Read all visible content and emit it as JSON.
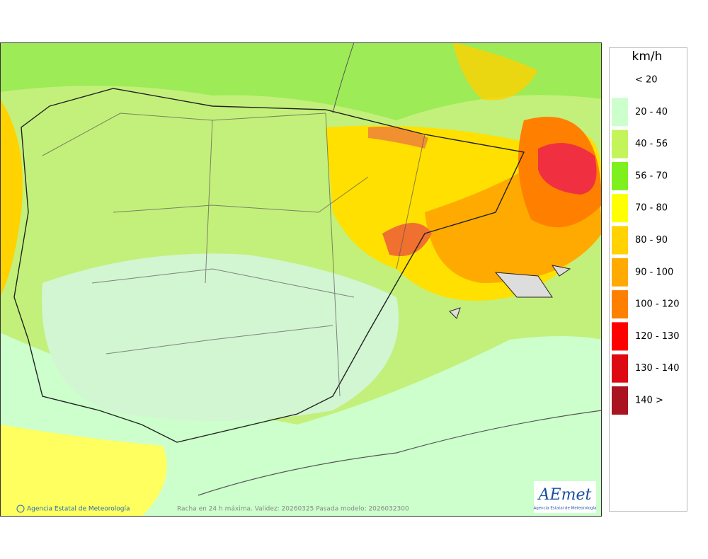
{
  "legend": {
    "title": "km/h",
    "items": [
      {
        "label": "< 20"
      },
      {
        "label": "20 - 40",
        "color": "#ccffcc"
      },
      {
        "label": "40 - 56",
        "color": "#c3f55a"
      },
      {
        "label": "56 - 70",
        "color": "#7ef01e"
      },
      {
        "label": "70 - 80",
        "color": "#ffff00"
      },
      {
        "label": "80 - 90",
        "color": "#ffd200"
      },
      {
        "label": "90 - 100",
        "color": "#ffaa00"
      },
      {
        "label": "100 - 120",
        "color": "#ff8000"
      },
      {
        "label": "120 - 130",
        "color": "#ff0000"
      },
      {
        "label": "130 - 140",
        "color": "#dd0a14"
      },
      {
        "label": "140 >",
        "color": "#aa1420"
      }
    ]
  },
  "footer": {
    "credit": "Agencia Estatal de Meteorología",
    "caption": "Racha en 24 h máxima. Validez: 20260325 Pasada modelo: 2026032300"
  },
  "logo": {
    "name": "AEmet",
    "subtitle": "Agencia Estatal de Meteorología"
  }
}
